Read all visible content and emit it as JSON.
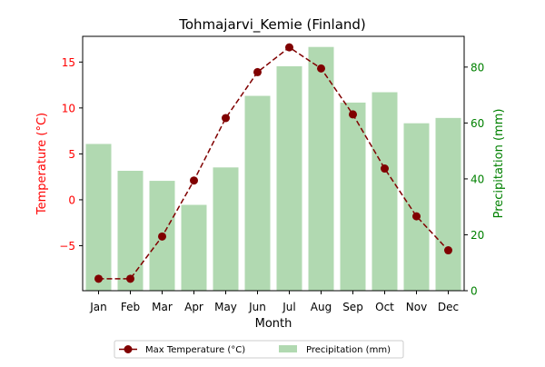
{
  "chart_data": {
    "type": "bar+line",
    "title": "Tohmajarvi_Kemie (Finland)",
    "xlabel": "Month",
    "categories": [
      "Jan",
      "Feb",
      "Mar",
      "Apr",
      "May",
      "Jun",
      "Jul",
      "Aug",
      "Sep",
      "Oct",
      "Nov",
      "Dec"
    ],
    "left_axis": {
      "label": "Temperature (°C)",
      "color": "#ff0000",
      "ylim": [
        -9.9,
        17.8
      ],
      "ticks": [
        -5,
        0,
        5,
        10,
        15
      ],
      "tick_labels": [
        "−5",
        "0",
        "5",
        "10",
        "15"
      ]
    },
    "right_axis": {
      "label": "Precipitation (mm)",
      "color": "#008000",
      "ylim": [
        0,
        91
      ],
      "ticks": [
        0,
        20,
        40,
        60,
        80
      ],
      "tick_labels": [
        "0",
        "20",
        "40",
        "60",
        "80"
      ]
    },
    "series": [
      {
        "name": "Max Temperature (°C)",
        "kind": "line",
        "axis": "left",
        "color": "#800000",
        "style": "dashed",
        "marker": "circle",
        "values": [
          -8.6,
          -8.6,
          -4.0,
          2.1,
          8.9,
          13.9,
          16.6,
          14.3,
          9.3,
          3.4,
          -1.8,
          -5.5
        ]
      },
      {
        "name": "Precipitation (mm)",
        "kind": "bar",
        "axis": "right",
        "color": "#b1d9b1",
        "values": [
          52.5,
          42.9,
          39.3,
          30.7,
          44.1,
          69.7,
          80.3,
          87.2,
          67.3,
          71.0,
          59.9,
          61.8
        ]
      }
    ],
    "legend": {
      "position": "bottom-center",
      "entries": [
        "Max Temperature (°C)",
        "Precipitation (mm)"
      ]
    },
    "grid": false
  }
}
